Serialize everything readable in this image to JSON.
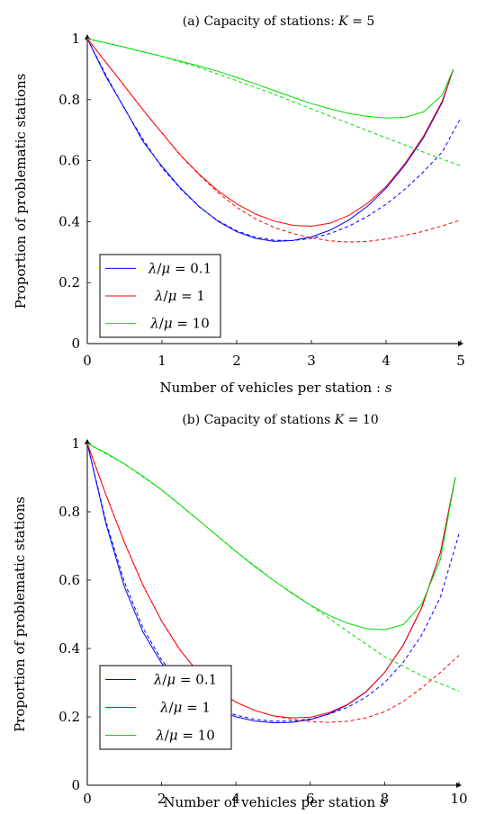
{
  "chart_data": [
    {
      "type": "line",
      "title": "(a) Capacity of stations: K = 5",
      "xlabel": "Number of vehicles per station : s",
      "ylabel": "Proportion of problematic stations",
      "xlim": [
        0,
        5
      ],
      "ylim": [
        0,
        1
      ],
      "xticks": [
        "0",
        "1",
        "2",
        "3",
        "4",
        "5"
      ],
      "yticks": [
        "0",
        "0.2",
        "0.4",
        "0.6",
        "0.8",
        "1"
      ],
      "grid": false,
      "legend_position": "bottom-left",
      "series": [
        {
          "name": "λ/μ = 0.1",
          "color": "#0000ff",
          "style": "solid",
          "x": [
            0,
            0.25,
            0.5,
            0.75,
            1,
            1.25,
            1.5,
            1.75,
            2,
            2.25,
            2.5,
            2.75,
            3,
            3.25,
            3.5,
            3.75,
            4,
            4.25,
            4.5,
            4.75,
            4.9
          ],
          "y": [
            1,
            0.875,
            0.771,
            0.661,
            0.581,
            0.509,
            0.449,
            0.401,
            0.367,
            0.345,
            0.335,
            0.338,
            0.35,
            0.372,
            0.405,
            0.45,
            0.51,
            0.585,
            0.675,
            0.79,
            0.9
          ]
        },
        {
          "name": "",
          "color": "#0000ff",
          "style": "dashed",
          "x": [
            0,
            0.25,
            0.5,
            0.75,
            1,
            1.25,
            1.5,
            1.75,
            2,
            2.25,
            2.5,
            2.75,
            3,
            3.25,
            3.5,
            3.75,
            4,
            4.25,
            4.5,
            4.75,
            5
          ],
          "y": [
            1,
            0.88,
            0.769,
            0.668,
            0.577,
            0.507,
            0.448,
            0.403,
            0.37,
            0.349,
            0.339,
            0.338,
            0.345,
            0.361,
            0.385,
            0.417,
            0.457,
            0.506,
            0.563,
            0.628,
            0.74
          ]
        },
        {
          "name": "λ/μ = 1",
          "color": "#ff0000",
          "style": "solid",
          "x": [
            0,
            0.25,
            0.5,
            0.75,
            1,
            1.25,
            1.5,
            1.75,
            2,
            2.25,
            2.5,
            2.75,
            3,
            3.25,
            3.5,
            3.75,
            4,
            4.25,
            4.5,
            4.75,
            4.9
          ],
          "y": [
            1,
            0.922,
            0.844,
            0.765,
            0.691,
            0.617,
            0.555,
            0.501,
            0.458,
            0.425,
            0.402,
            0.388,
            0.385,
            0.395,
            0.42,
            0.46,
            0.515,
            0.59,
            0.68,
            0.795,
            0.9
          ]
        },
        {
          "name": "",
          "color": "#ff0000",
          "style": "dashed",
          "x": [
            0,
            0.25,
            0.5,
            0.75,
            1,
            1.25,
            1.5,
            1.75,
            2,
            2.25,
            2.5,
            2.75,
            3,
            3.25,
            3.5,
            3.75,
            4,
            4.25,
            4.5,
            4.75,
            5
          ],
          "y": [
            1,
            0.922,
            0.844,
            0.765,
            0.691,
            0.616,
            0.553,
            0.495,
            0.447,
            0.409,
            0.381,
            0.361,
            0.347,
            0.337,
            0.333,
            0.335,
            0.343,
            0.355,
            0.368,
            0.386,
            0.405
          ]
        },
        {
          "name": "λ/μ = 10",
          "color": "#00dd00",
          "style": "solid",
          "x": [
            0,
            0.25,
            0.5,
            0.75,
            1,
            1.25,
            1.5,
            1.75,
            2,
            2.25,
            2.5,
            2.75,
            3,
            3.25,
            3.5,
            3.75,
            4,
            4.25,
            4.5,
            4.75,
            4.9
          ],
          "y": [
            1,
            0.986,
            0.972,
            0.957,
            0.942,
            0.926,
            0.91,
            0.893,
            0.873,
            0.852,
            0.83,
            0.808,
            0.787,
            0.77,
            0.755,
            0.745,
            0.74,
            0.742,
            0.76,
            0.815,
            0.9
          ]
        },
        {
          "name": "",
          "color": "#00dd00",
          "style": "dashed",
          "x": [
            0,
            0.5,
            1,
            1.5,
            2,
            2.5,
            3,
            3.5,
            4,
            4.5,
            5
          ],
          "y": [
            1,
            0.972,
            0.942,
            0.905,
            0.862,
            0.818,
            0.77,
            0.722,
            0.675,
            0.628,
            0.583
          ]
        }
      ]
    },
    {
      "type": "line",
      "title": "(b) Capacity of stations K = 10",
      "xlabel": "Number of vehicles per station s",
      "ylabel": "Proportion of problematic stations",
      "xlim": [
        0,
        10
      ],
      "ylim": [
        0,
        1
      ],
      "xticks": [
        "0",
        "2",
        "4",
        "6",
        "8",
        "10"
      ],
      "yticks": [
        "0",
        "0.2",
        "0.4",
        "0.6",
        "0.8",
        "1"
      ],
      "grid": false,
      "legend_position": "bottom-left",
      "series": [
        {
          "name": "λ/μ = 0.1",
          "color": "#0000ff",
          "style": "solid",
          "x": [
            0,
            0.5,
            1,
            1.5,
            2,
            2.5,
            3,
            3.5,
            4,
            4.5,
            5,
            5.5,
            6,
            6.5,
            7,
            7.5,
            8,
            8.5,
            9,
            9.5,
            9.9
          ],
          "y": [
            1,
            0.765,
            0.58,
            0.448,
            0.357,
            0.295,
            0.25,
            0.22,
            0.2,
            0.188,
            0.183,
            0.184,
            0.192,
            0.209,
            0.235,
            0.273,
            0.33,
            0.41,
            0.52,
            0.68,
            0.9
          ]
        },
        {
          "name": "",
          "color": "#0000ff",
          "style": "dashed",
          "x": [
            0,
            0.5,
            1,
            1.5,
            2,
            2.5,
            3,
            3.5,
            4,
            4.5,
            5,
            5.5,
            6,
            6.5,
            7,
            7.5,
            8,
            8.5,
            9,
            9.5,
            10
          ],
          "y": [
            1,
            0.772,
            0.594,
            0.46,
            0.366,
            0.3,
            0.255,
            0.225,
            0.205,
            0.193,
            0.187,
            0.188,
            0.194,
            0.208,
            0.228,
            0.258,
            0.3,
            0.36,
            0.44,
            0.55,
            0.735
          ]
        },
        {
          "name": "λ/μ = 1",
          "color": "#ff0000",
          "style": "solid",
          "x": [
            0,
            0.5,
            1,
            1.5,
            2,
            2.5,
            3,
            3.5,
            4,
            4.5,
            5,
            5.5,
            6,
            6.5,
            7,
            7.5,
            8,
            8.5,
            9,
            9.5,
            9.9
          ],
          "y": [
            1,
            0.85,
            0.71,
            0.585,
            0.48,
            0.395,
            0.328,
            0.279,
            0.243,
            0.219,
            0.203,
            0.197,
            0.199,
            0.212,
            0.236,
            0.274,
            0.33,
            0.41,
            0.52,
            0.68,
            0.9
          ]
        },
        {
          "name": "",
          "color": "#ff0000",
          "style": "dashed",
          "x": [
            0,
            0.5,
            1,
            1.5,
            2,
            2.5,
            3,
            3.5,
            4,
            4.5,
            5,
            5.5,
            6,
            6.5,
            7,
            7.5,
            8,
            8.5,
            9,
            9.5,
            10
          ],
          "y": [
            1,
            0.85,
            0.71,
            0.585,
            0.48,
            0.395,
            0.328,
            0.279,
            0.243,
            0.219,
            0.203,
            0.193,
            0.186,
            0.184,
            0.187,
            0.197,
            0.215,
            0.245,
            0.285,
            0.33,
            0.38
          ]
        },
        {
          "name": "λ/μ = 10",
          "color": "#00dd00",
          "style": "solid",
          "x": [
            0,
            0.5,
            1,
            1.5,
            2,
            2.5,
            3,
            3.5,
            4,
            4.5,
            5,
            5.5,
            6,
            6.5,
            7,
            7.5,
            8,
            8.5,
            9,
            9.5,
            9.9
          ],
          "y": [
            1,
            0.972,
            0.94,
            0.904,
            0.864,
            0.82,
            0.775,
            0.729,
            0.684,
            0.64,
            0.6,
            0.562,
            0.527,
            0.497,
            0.474,
            0.458,
            0.455,
            0.47,
            0.53,
            0.66,
            0.9
          ]
        },
        {
          "name": "",
          "color": "#00dd00",
          "style": "dashed",
          "x": [
            0,
            1,
            2,
            3,
            4,
            5,
            6,
            7,
            8,
            9,
            10
          ],
          "y": [
            1,
            0.94,
            0.864,
            0.775,
            0.684,
            0.6,
            0.527,
            0.45,
            0.376,
            0.32,
            0.275
          ]
        }
      ]
    }
  ]
}
